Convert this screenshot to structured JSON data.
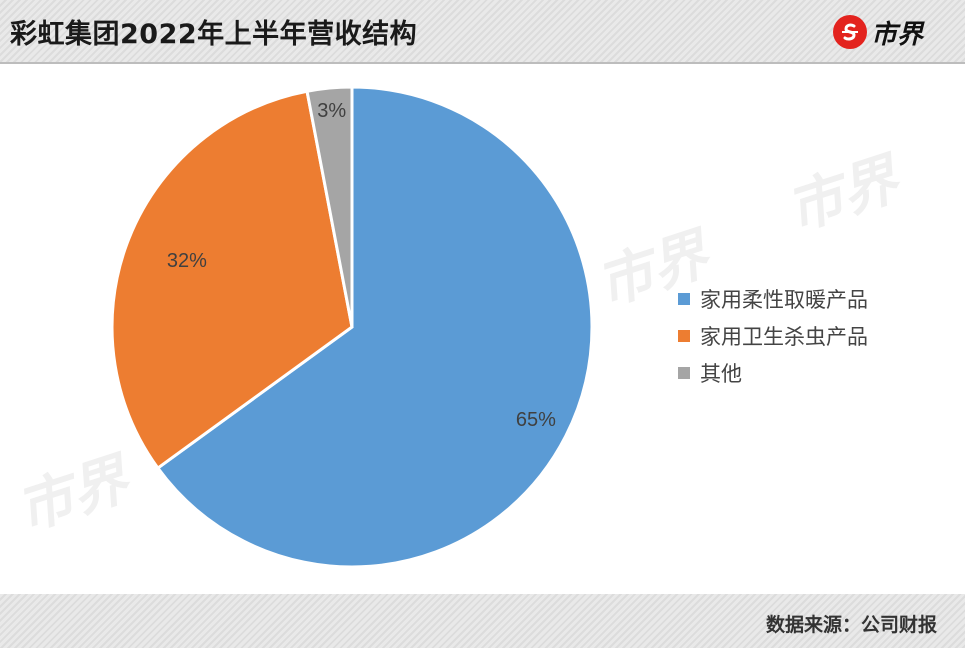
{
  "header": {
    "title": "彩虹集团2022年上半年营收结构",
    "brand_text": "市界"
  },
  "footer": {
    "source": "数据来源：公司财报"
  },
  "watermark_text": "市界",
  "chart_data": {
    "type": "pie",
    "title": "彩虹集团2022年上半年营收结构",
    "categories": [
      "家用柔性取暖产品",
      "家用卫生杀虫产品",
      "其他"
    ],
    "values": [
      65,
      32,
      3
    ],
    "labels": [
      "65%",
      "32%",
      "3%"
    ],
    "colors": [
      "#5b9bd5",
      "#ed7d31",
      "#a5a5a5"
    ],
    "legend_position": "right",
    "start_angle_direction": "clockwise-from-top"
  }
}
